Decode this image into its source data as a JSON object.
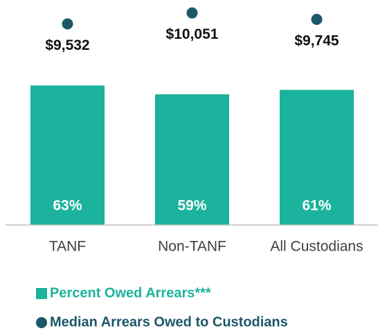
{
  "chart_data": {
    "type": "bar",
    "categories": [
      "TANF",
      "Non-TANF",
      "All Custodians"
    ],
    "series": [
      {
        "name": "Percent Owed Arrears***",
        "color": "#1bb39d",
        "values": [
          63,
          59,
          61
        ],
        "value_labels": [
          "63%",
          "59%",
          "61%"
        ]
      },
      {
        "name": "Median Arrears Owed to Custodians",
        "color": "#1d5768",
        "axis": "y2",
        "values": [
          9532,
          10051,
          9745
        ],
        "value_labels": [
          "$9,532",
          "$10,051",
          "$9,745"
        ]
      }
    ],
    "ylim": [
      0,
      100
    ],
    "y2lim": [
      0,
      10500
    ]
  }
}
